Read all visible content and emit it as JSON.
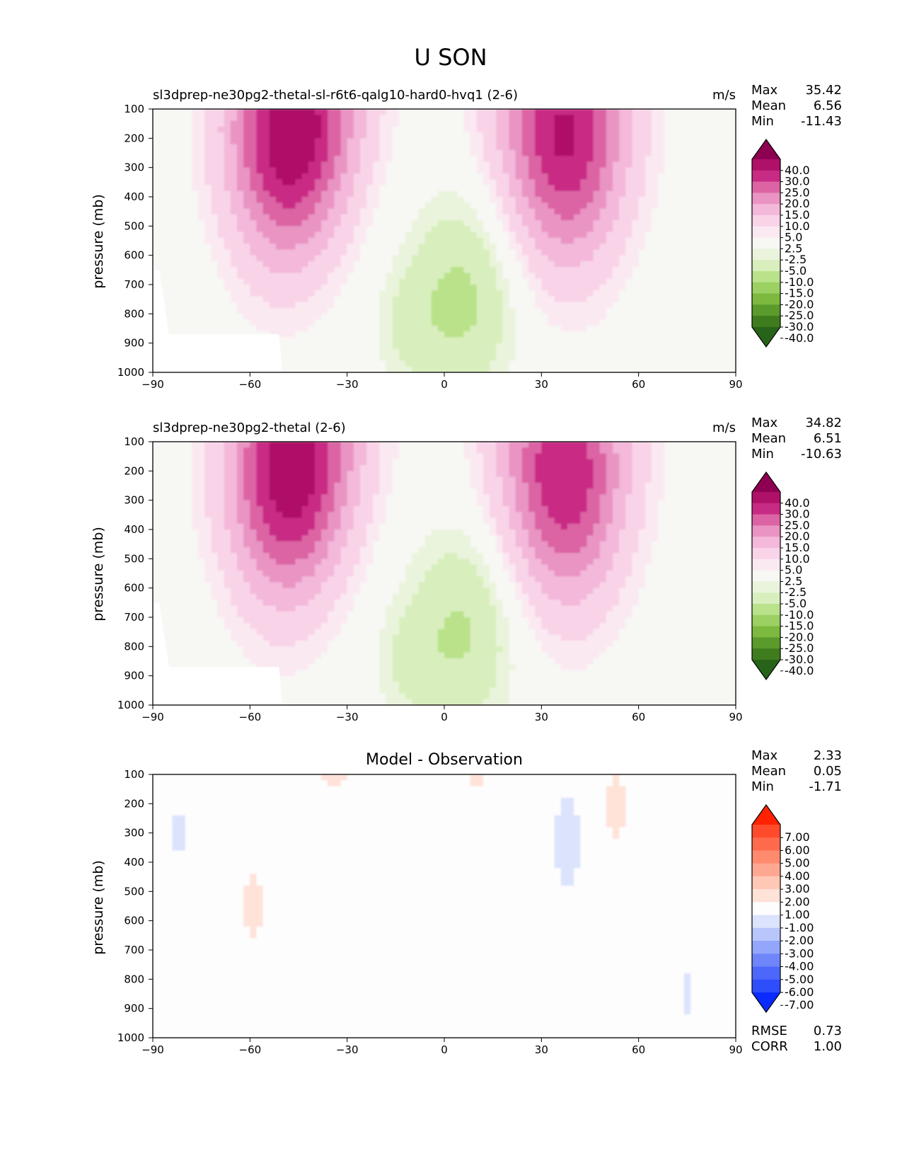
{
  "figure_title": "U SON",
  "chart_data": [
    {
      "type": "contour",
      "title": "sl3dprep-ne30pg2-thetal-sl-r6t6-qalg10-hard0-hvq1 (2-6)",
      "units": "m/s",
      "xlabel": "",
      "ylabel": "pressure (mb)",
      "x_ticks": [
        -90,
        -60,
        -30,
        0,
        30,
        60,
        90
      ],
      "y_ticks": [
        100,
        200,
        300,
        400,
        500,
        600,
        700,
        800,
        900,
        1000
      ],
      "xlim": [
        -90,
        90
      ],
      "ylim": [
        1000,
        100
      ],
      "stats": [
        {
          "label": "Max",
          "value": "35.42"
        },
        {
          "label": "Mean",
          "value": "6.56"
        },
        {
          "label": "Min",
          "value": "-11.43"
        }
      ],
      "colorbar": {
        "labels": [
          "40.0",
          "30.0",
          "25.0",
          "20.0",
          "15.0",
          "10.0",
          "5.0",
          "2.5",
          "-2.5",
          "-5.0",
          "-10.0",
          "-15.0",
          "-20.0",
          "-25.0",
          "-30.0",
          "-40.0"
        ],
        "colors": [
          "#8e0152",
          "#af1068",
          "#c82b84",
          "#dc64a4",
          "#e994c3",
          "#f3b8da",
          "#f9d4e8",
          "#fbe9f2",
          "#f7f7f4",
          "#eaf4dc",
          "#d8efbd",
          "#b9e28a",
          "#9cd062",
          "#7cb93e",
          "#5a9b2b",
          "#3f7c1e",
          "#276419"
        ]
      },
      "features": [
        {
          "kind": "jet",
          "sign": "positive",
          "center_lat": -47,
          "center_p": 180,
          "peak": 35.42
        },
        {
          "kind": "jet",
          "sign": "positive",
          "center_lat": 37,
          "center_p": 190,
          "peak": 31
        },
        {
          "kind": "easterly",
          "sign": "negative",
          "center_lat": 5,
          "center_p": 750,
          "peak": -11.43
        }
      ]
    },
    {
      "type": "contour",
      "title": "sl3dprep-ne30pg2-thetal (2-6)",
      "units": "m/s",
      "xlabel": "",
      "ylabel": "pressure (mb)",
      "x_ticks": [
        -90,
        -60,
        -30,
        0,
        30,
        60,
        90
      ],
      "y_ticks": [
        100,
        200,
        300,
        400,
        500,
        600,
        700,
        800,
        900,
        1000
      ],
      "xlim": [
        -90,
        90
      ],
      "ylim": [
        1000,
        100
      ],
      "stats": [
        {
          "label": "Max",
          "value": "34.82"
        },
        {
          "label": "Mean",
          "value": "6.51"
        },
        {
          "label": "Min",
          "value": "-10.63"
        }
      ],
      "colorbar": {
        "labels": [
          "40.0",
          "30.0",
          "25.0",
          "20.0",
          "15.0",
          "10.0",
          "5.0",
          "2.5",
          "-2.5",
          "-5.0",
          "-10.0",
          "-15.0",
          "-20.0",
          "-25.0",
          "-30.0",
          "-40.0"
        ],
        "colors": [
          "#8e0152",
          "#af1068",
          "#c82b84",
          "#dc64a4",
          "#e994c3",
          "#f3b8da",
          "#f9d4e8",
          "#fbe9f2",
          "#f7f7f4",
          "#eaf4dc",
          "#d8efbd",
          "#b9e28a",
          "#9cd062",
          "#7cb93e",
          "#5a9b2b",
          "#3f7c1e",
          "#276419"
        ]
      },
      "features": [
        {
          "kind": "jet",
          "sign": "positive",
          "center_lat": -47,
          "center_p": 200,
          "peak": 34.82
        },
        {
          "kind": "jet",
          "sign": "positive",
          "center_lat": 37,
          "center_p": 210,
          "peak": 30
        },
        {
          "kind": "easterly",
          "sign": "negative",
          "center_lat": 5,
          "center_p": 750,
          "peak": -10.63
        }
      ]
    },
    {
      "type": "contour",
      "title": "Model - Observation",
      "units": "",
      "xlabel": "",
      "ylabel": "pressure (mb)",
      "x_ticks": [
        -90,
        -60,
        -30,
        0,
        30,
        60,
        90
      ],
      "y_ticks": [
        100,
        200,
        300,
        400,
        500,
        600,
        700,
        800,
        900,
        1000
      ],
      "xlim": [
        -90,
        90
      ],
      "ylim": [
        1000,
        100
      ],
      "stats": [
        {
          "label": "Max",
          "value": "2.33"
        },
        {
          "label": "Mean",
          "value": "0.05"
        },
        {
          "label": "Min",
          "value": "-1.71"
        }
      ],
      "stats_bottom": [
        {
          "label": "RMSE",
          "value": "0.73"
        },
        {
          "label": "CORR",
          "value": "1.00"
        }
      ],
      "colorbar": {
        "labels": [
          "7.00",
          "6.00",
          "5.00",
          "4.00",
          "3.00",
          "2.00",
          "1.00",
          "-1.00",
          "-2.00",
          "-3.00",
          "-4.00",
          "-5.00",
          "-6.00",
          "-7.00"
        ],
        "colors": [
          "#ff2200",
          "#ff4b2c",
          "#ff6a4d",
          "#ff8a6d",
          "#ffa891",
          "#ffc8b6",
          "#ffe2d8",
          "#fdfdfd",
          "#dbe3fd",
          "#b9c6fc",
          "#93a6fb",
          "#6f86fa",
          "#4c67f9",
          "#2e4dfb",
          "#0a2bff"
        ]
      },
      "features": [
        {
          "kind": "anomaly",
          "sign": "positive",
          "center_lat": -34,
          "center_p": 110,
          "peak": 1.5
        },
        {
          "kind": "anomaly",
          "sign": "positive",
          "center_lat": 10,
          "center_p": 125,
          "peak": 1.2
        },
        {
          "kind": "anomaly",
          "sign": "positive",
          "center_lat": -59,
          "center_p": 550,
          "peak": 1.3
        },
        {
          "kind": "anomaly",
          "sign": "positive",
          "center_lat": 53,
          "center_p": 210,
          "peak": 1.3
        },
        {
          "kind": "anomaly",
          "sign": "negative",
          "center_lat": -82,
          "center_p": 300,
          "peak": -1.2
        },
        {
          "kind": "anomaly",
          "sign": "negative",
          "center_lat": 38,
          "center_p": 330,
          "peak": -1.71
        },
        {
          "kind": "anomaly",
          "sign": "negative",
          "center_lat": 75,
          "center_p": 850,
          "peak": -1.3
        }
      ]
    }
  ]
}
